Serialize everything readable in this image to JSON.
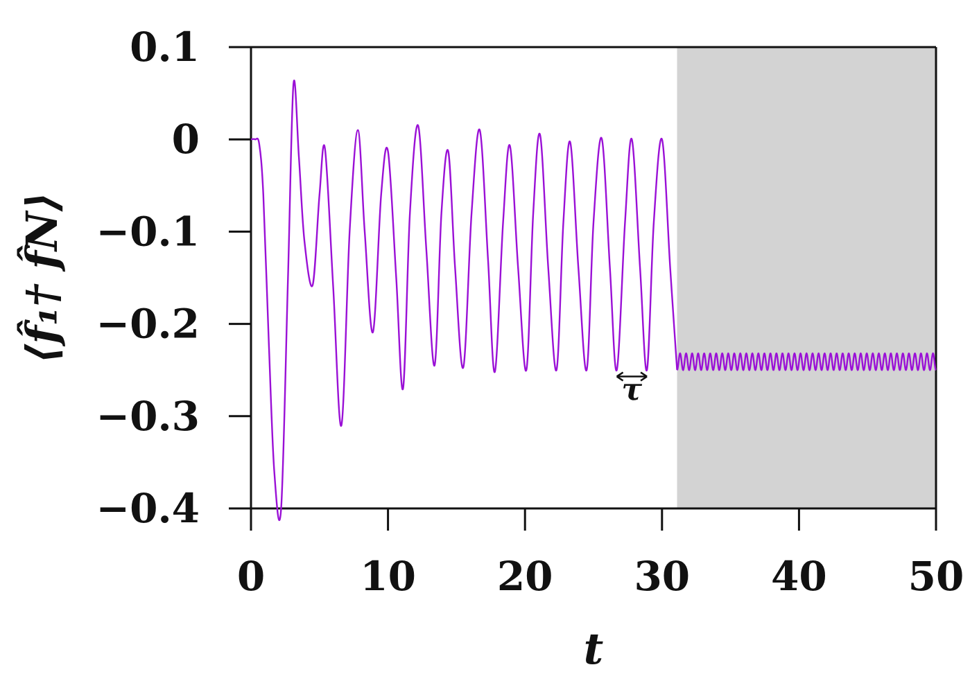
{
  "chart_data": {
    "type": "line",
    "xlabel": "t",
    "ylabel": "⟨f̂₁† f̂N⟩",
    "xlim": [
      0,
      50
    ],
    "ylim": [
      -0.4,
      0.1
    ],
    "x_ticks": [
      0,
      10,
      20,
      30,
      40,
      50
    ],
    "x_tick_labels": [
      "0",
      "10",
      "20",
      "30",
      "40",
      "50"
    ],
    "y_ticks": [
      0.1,
      0,
      -0.1,
      -0.2,
      -0.3,
      -0.4
    ],
    "y_tick_labels": [
      "0.1",
      "0",
      "−0.1",
      "−0.2",
      "−0.3",
      "−0.4"
    ],
    "grid": false,
    "colors": {
      "series": "#9a10d6",
      "shaded_region": "#d3d3d3",
      "axis": "#111111"
    },
    "shaded_region": {
      "x_start": 31.1,
      "x_end": 50
    },
    "annotation": {
      "text": "τ",
      "x_start": 26.7,
      "x_end": 28.9,
      "y": -0.257
    },
    "series": [
      {
        "x": [
          0,
          0.3,
          0.6,
          0.9,
          1.3,
          1.7,
          2.2,
          2.7,
          3.1,
          3.5,
          3.9,
          4.5,
          5.0,
          5.4,
          6.0,
          6.6,
          7.2,
          7.8,
          8.3,
          8.9,
          9.5,
          10.0,
          10.6,
          11.1,
          11.6,
          12.2,
          12.8,
          13.4,
          13.9,
          14.4,
          14.9,
          15.5,
          16.1,
          16.7,
          17.3,
          17.8,
          18.4,
          18.9,
          19.5,
          20.1,
          20.6,
          21.1,
          21.7,
          22.3,
          22.8,
          23.3,
          23.9,
          24.5,
          25.0,
          25.6,
          26.2,
          26.7,
          27.3,
          27.8,
          28.4,
          28.9,
          29.4,
          30.0,
          30.6,
          31.1
        ],
        "y": [
          0,
          0,
          -0.005,
          -0.06,
          -0.22,
          -0.36,
          -0.4,
          -0.15,
          0.06,
          -0.02,
          -0.11,
          -0.158,
          -0.06,
          -0.01,
          -0.16,
          -0.31,
          -0.1,
          0.01,
          -0.1,
          -0.209,
          -0.06,
          -0.013,
          -0.15,
          -0.27,
          -0.08,
          0.015,
          -0.12,
          -0.245,
          -0.08,
          -0.013,
          -0.14,
          -0.247,
          -0.08,
          0.01,
          -0.13,
          -0.252,
          -0.09,
          -0.007,
          -0.14,
          -0.25,
          -0.08,
          0.005,
          -0.14,
          -0.25,
          -0.09,
          -0.003,
          -0.14,
          -0.25,
          -0.09,
          0.001,
          -0.14,
          -0.25,
          -0.09,
          0.0,
          -0.14,
          -0.25,
          -0.09,
          0.0,
          -0.14,
          -0.25
        ]
      },
      {
        "x_start": 31.1,
        "x_end": 50,
        "y_max": -0.232,
        "y_min": -0.25,
        "cycles": 43
      }
    ]
  }
}
